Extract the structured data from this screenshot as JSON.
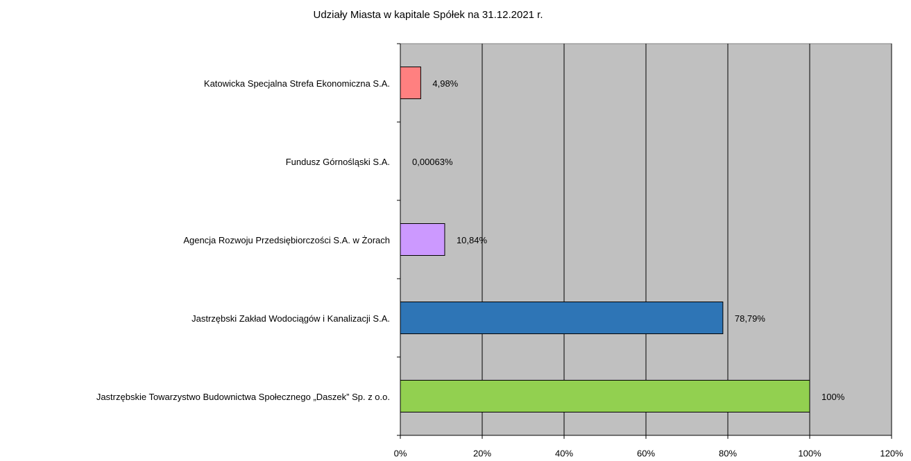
{
  "chart_data": {
    "type": "bar",
    "orientation": "horizontal",
    "title": "Udziały Miasta w kapitale Spółek na 31.12.2021 r.",
    "categories": [
      "Katowicka Specjalna Strefa Ekonomiczna S.A.",
      "Fundusz Górnośląski S.A.",
      "Agencja Rozwoju Przedsiębiorczości S.A. w Żorach",
      "Jastrzębski Zakład Wodociągów i Kanalizacji S.A.",
      "Jastrzębskie Towarzystwo Budownictwa Społecznego „Daszek” Sp. z o.o."
    ],
    "values": [
      4.98,
      0.00063,
      10.84,
      78.79,
      100
    ],
    "value_labels": [
      "4,98%",
      "0,00063%",
      "10,84%",
      "78,79%",
      "100%"
    ],
    "colors": [
      "#ff8080",
      "#000000",
      "#cc99ff",
      "#2e75b6",
      "#92d050"
    ],
    "xlim": [
      0,
      120
    ],
    "xticks": [
      {
        "value": 0,
        "label": "0%"
      },
      {
        "value": 20,
        "label": "20%"
      },
      {
        "value": 40,
        "label": "40%"
      },
      {
        "value": 60,
        "label": "60%"
      },
      {
        "value": 80,
        "label": "80%"
      },
      {
        "value": 100,
        "label": "100%"
      },
      {
        "value": 120,
        "label": "120%"
      }
    ],
    "grid": true,
    "background": "#c0c0c0"
  }
}
